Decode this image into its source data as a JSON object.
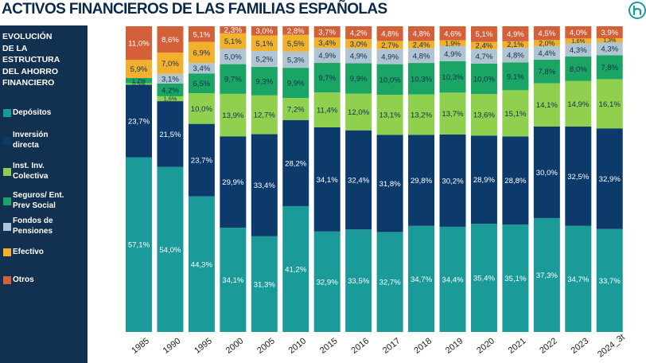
{
  "page": {
    "title": "ACTIVOS FINANCIEROS DE LAS FAMILIAS ESPAÑOLAS",
    "logo_icon": "logo-icon"
  },
  "sidebar": {
    "heading_lines": [
      "EVOLUCIÓN",
      "DE LA",
      "ESTRUCTURA",
      "DEL AHORRO",
      "FINANCIERO"
    ],
    "legend": [
      {
        "lines": [
          "Depósitos"
        ],
        "color": "#1b9a9a"
      },
      {
        "lines": [
          "Inversión",
          "directa"
        ],
        "color": "#0b3a6b"
      },
      {
        "lines": [
          "Inst. Inv.",
          "Colectiva"
        ],
        "color": "#8fd14f"
      },
      {
        "lines": [
          "Seguros/ Ent.",
          "Prev Social"
        ],
        "color": "#1aa564"
      },
      {
        "lines": [
          "Fondos de",
          "Pensiones"
        ],
        "color": "#b0c4d2"
      },
      {
        "lines": [
          "Efectivo"
        ],
        "color": "#f2b12d"
      },
      {
        "lines": [
          "Otros"
        ],
        "color": "#d4603a"
      }
    ]
  },
  "chart_data": {
    "type": "bar",
    "stacked": true,
    "title": "ACTIVOS FINANCIEROS DE LAS FAMILIAS ESPAÑOLAS",
    "ylim": [
      0,
      100
    ],
    "unit": "%",
    "decimal_separator": ",",
    "categories": [
      "1985",
      "1990",
      "1995",
      "2000",
      "2005",
      "2010",
      "2015",
      "2016",
      "2017",
      "2018",
      "2019",
      "2020",
      "2021",
      "2022",
      "2023",
      "2024_3t"
    ],
    "series": [
      {
        "name": "Depósitos",
        "color": "#1b9a9a",
        "label_color": "#ffffff",
        "values": [
          57.1,
          54.0,
          44.3,
          34.1,
          31.3,
          41.2,
          32.9,
          33.5,
          32.7,
          34.7,
          34.4,
          35.4,
          35.1,
          37.3,
          34.7,
          33.7
        ]
      },
      {
        "name": "Inversión directa",
        "color": "#0b3a6b",
        "label_color": "#ffffff",
        "values": [
          23.7,
          21.5,
          23.7,
          29.9,
          33.4,
          28.2,
          34.1,
          32.4,
          31.8,
          29.8,
          30.2,
          28.9,
          28.8,
          30.0,
          32.5,
          32.9
        ]
      },
      {
        "name": "Inst. Inv. Colectiva",
        "color": "#8fd14f",
        "label_color": "#12304f",
        "values": [
          0.5,
          1.6,
          10.0,
          13.9,
          12.7,
          7.2,
          11.4,
          12.0,
          13.1,
          13.2,
          13.7,
          13.6,
          15.1,
          14.1,
          14.9,
          16.1
        ]
      },
      {
        "name": "Seguros/ Ent. Prev Social",
        "color": "#1aa564",
        "label_color": "#12304f",
        "values": [
          1.7,
          4.2,
          6.5,
          9.7,
          9.3,
          9.9,
          9.7,
          9.9,
          10.0,
          10.3,
          10.3,
          10.0,
          9.1,
          7.8,
          8.0,
          7.8
        ]
      },
      {
        "name": "Fondos de Pensiones",
        "color": "#b0c4d2",
        "label_color": "#12304f",
        "values": [
          0.0,
          3.1,
          3.4,
          5.0,
          5.2,
          5.3,
          4.9,
          4.9,
          4.9,
          4.8,
          4.9,
          4.7,
          4.8,
          4.4,
          4.3,
          4.3
        ]
      },
      {
        "name": "Efectivo",
        "color": "#f2b12d",
        "label_color": "#12304f",
        "values": [
          5.9,
          7.0,
          6.9,
          5.1,
          5.1,
          5.5,
          3.4,
          3.0,
          2.7,
          2.4,
          1.9,
          2.4,
          2.1,
          2.0,
          1.6,
          1.3
        ]
      },
      {
        "name": "Otros",
        "color": "#d4603a",
        "label_color": "#ffffff",
        "values": [
          11.0,
          8.6,
          5.1,
          2.3,
          3.0,
          2.8,
          3.7,
          4.2,
          4.8,
          4.8,
          4.6,
          5.1,
          4.9,
          4.5,
          4.0,
          3.9
        ]
      }
    ]
  }
}
